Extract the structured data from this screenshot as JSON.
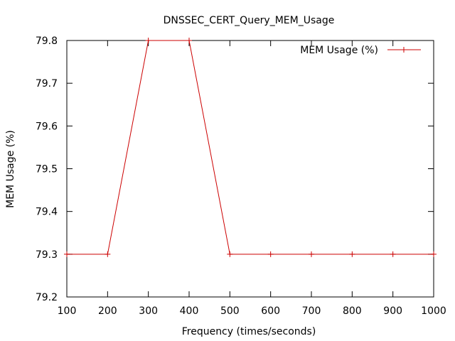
{
  "chart_data": {
    "type": "line",
    "title": "DNSSEC_CERT_Query_MEM_Usage",
    "xlabel": "Frequency (times/seconds)",
    "ylabel": "MEM Usage (%)",
    "xlim": [
      100,
      1000
    ],
    "ylim": [
      79.2,
      79.8
    ],
    "x_ticks": [
      100,
      200,
      300,
      400,
      500,
      600,
      700,
      800,
      900,
      1000
    ],
    "x_tick_labels": [
      "100",
      "200",
      "300",
      "400",
      "500",
      "600",
      "700",
      "800",
      "900",
      "1000"
    ],
    "y_ticks": [
      79.2,
      79.3,
      79.4,
      79.5,
      79.6,
      79.7,
      79.8
    ],
    "y_tick_labels": [
      "79.2",
      "79.3",
      "79.4",
      "79.5",
      "79.6",
      "79.7",
      "79.8"
    ],
    "grid": false,
    "legend_position": "top-right",
    "series": [
      {
        "name": "MEM Usage (%)",
        "color": "#cc0000",
        "marker": "plus",
        "x": [
          100,
          200,
          300,
          400,
          500,
          600,
          700,
          800,
          900,
          1000
        ],
        "y": [
          79.3,
          79.3,
          79.8,
          79.8,
          79.3,
          79.3,
          79.3,
          79.3,
          79.3,
          79.3
        ]
      }
    ]
  }
}
